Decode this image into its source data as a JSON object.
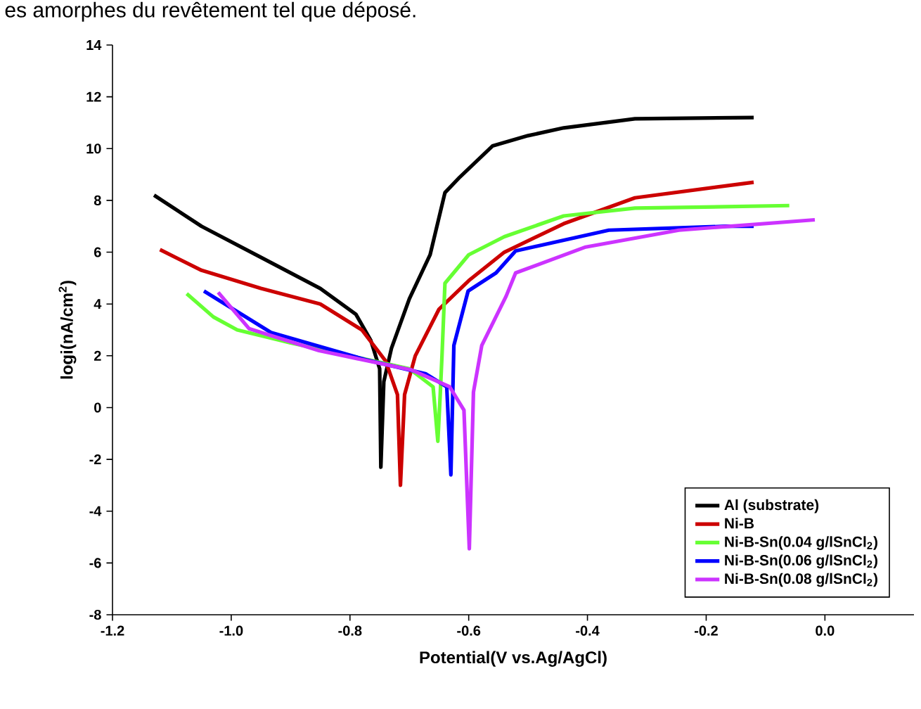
{
  "chart_data": {
    "type": "line",
    "annotations": [
      "es amorphes du revêtement tel que déposé."
    ],
    "xlabel": "Potential(V vs.Ag/AgCl)",
    "ylabel": "logi(nA/cm$^{2}$)",
    "xlim": [
      -1.2,
      0.15
    ],
    "ylim": [
      -8,
      14
    ],
    "xticks": [
      {
        "value": -1.2,
        "label": "-1.2"
      },
      {
        "value": -1.0,
        "label": "-1.0"
      },
      {
        "value": -0.8,
        "label": "-0.8"
      },
      {
        "value": -0.6,
        "label": "-0.6"
      },
      {
        "value": -0.4,
        "label": "-0.4"
      },
      {
        "value": -0.2,
        "label": "-0.2"
      },
      {
        "value": 0.0,
        "label": "0.0"
      }
    ],
    "yticks": [
      -8,
      -6,
      -4,
      -2,
      0,
      2,
      4,
      6,
      8,
      10,
      12,
      14
    ],
    "legend": "bottom right",
    "grid": false,
    "series": [
      {
        "name": "Al (substrate)",
        "color": "#000000",
        "x": [
          -1.13,
          -1.05,
          -0.95,
          -0.85,
          -0.79,
          -0.765,
          -0.75,
          -0.748,
          -0.743,
          -0.73,
          -0.7,
          -0.665,
          -0.64,
          -0.615,
          -0.56,
          -0.5,
          -0.44,
          -0.32,
          -0.12
        ],
        "values": [
          8.2,
          7.0,
          5.8,
          4.6,
          3.6,
          2.6,
          1.5,
          -2.3,
          1.0,
          2.3,
          4.2,
          5.9,
          8.3,
          8.9,
          10.1,
          10.5,
          10.8,
          11.15,
          11.2
        ]
      },
      {
        "name": "Ni-B",
        "color": "#cc0000",
        "x": [
          -1.12,
          -1.05,
          -0.95,
          -0.85,
          -0.78,
          -0.74,
          -0.72,
          -0.715,
          -0.708,
          -0.69,
          -0.65,
          -0.6,
          -0.54,
          -0.44,
          -0.32,
          -0.12
        ],
        "values": [
          6.1,
          5.3,
          4.6,
          4.0,
          3.0,
          1.8,
          0.5,
          -3.0,
          0.5,
          2.0,
          3.8,
          4.9,
          6.0,
          7.1,
          8.1,
          8.7
        ]
      },
      {
        "name": "Ni-B-Sn(0.04 g/lSnCl$_{2}$)",
        "color": "#66ff33",
        "x": [
          -1.075,
          -1.03,
          -0.99,
          -0.9,
          -0.8,
          -0.7,
          -0.66,
          -0.652,
          -0.648,
          -0.645,
          -0.64,
          -0.6,
          -0.54,
          -0.44,
          -0.32,
          -0.06
        ],
        "values": [
          4.4,
          3.5,
          3.0,
          2.5,
          null,
          1.5,
          0.8,
          -1.3,
          0.5,
          2.0,
          4.8,
          5.9,
          6.6,
          7.4,
          7.7,
          7.8
        ]
      },
      {
        "name": "Ni-B-Sn(0.06 g/lSnCl$_{2}$)",
        "color": "#0000ff",
        "x": [
          -1.046,
          -0.933,
          -0.774,
          -0.672,
          -0.637,
          -0.63,
          -0.625,
          -0.601,
          -0.554,
          -0.521,
          -0.364,
          -0.166,
          -0.12
        ],
        "values": [
          4.5,
          2.9,
          1.85,
          1.3,
          0.8,
          -2.6,
          2.4,
          4.5,
          5.2,
          6.05,
          6.85,
          7.0,
          7.0
        ]
      },
      {
        "name": "Ni-B-Sn(0.08 g/lSnCl$_{2}$)",
        "color": "#cc33ff",
        "x": [
          -1.022,
          -0.97,
          -0.852,
          -0.696,
          -0.632,
          -0.608,
          -0.599,
          -0.592,
          -0.578,
          -0.537,
          -0.521,
          -0.403,
          -0.246,
          -0.017
        ],
        "values": [
          4.45,
          3.05,
          2.2,
          1.45,
          0.8,
          -0.1,
          -5.45,
          0.6,
          2.4,
          4.3,
          5.2,
          6.2,
          6.85,
          7.25
        ]
      }
    ]
  }
}
